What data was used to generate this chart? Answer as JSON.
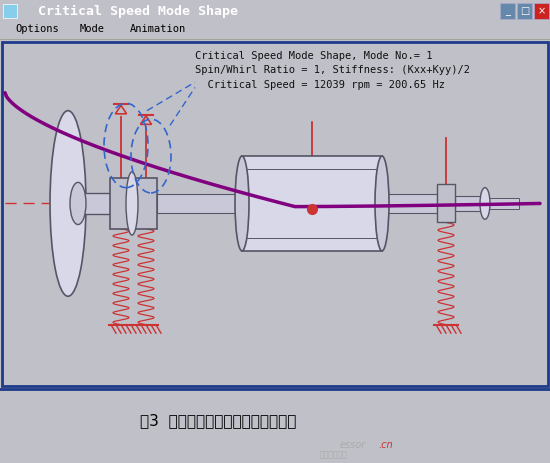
{
  "title_bar_text": "  Critical Speed Mode Shape",
  "title_bar_bg": "#1e4d9b",
  "menu_items": [
    [
      "Options",
      0.04
    ],
    [
      "Mode",
      0.14
    ],
    [
      "Animation",
      0.22
    ]
  ],
  "menu_bg": "#e8e4d8",
  "canvas_bg": "#ffffff",
  "canvas_border": "#1e3a8a",
  "annotation_lines": [
    "Critical Speed Mode Shape, Mode No.= 1",
    "Spin/Whirl Ratio = 1, Stiffness: (Kxx+Kyy)/2",
    "  Critical Speed = 12039 rpm = 200.65 Hz"
  ],
  "mode_shape_color": "#800080",
  "centerline_color": "#cc3333",
  "spring_color": "#cc3333",
  "arrow_color": "#cc3333",
  "rotor_edge": "#555566",
  "rotor_face": "#d8d8e8",
  "dashed_color": "#3366cc",
  "caption": "图3  变频离心式压缩机一阶临界转速",
  "caption_bg": "#ffffff",
  "watermark1": "essor",
  "watermark2": ".cn",
  "fig_bg": "#c0c0c8"
}
